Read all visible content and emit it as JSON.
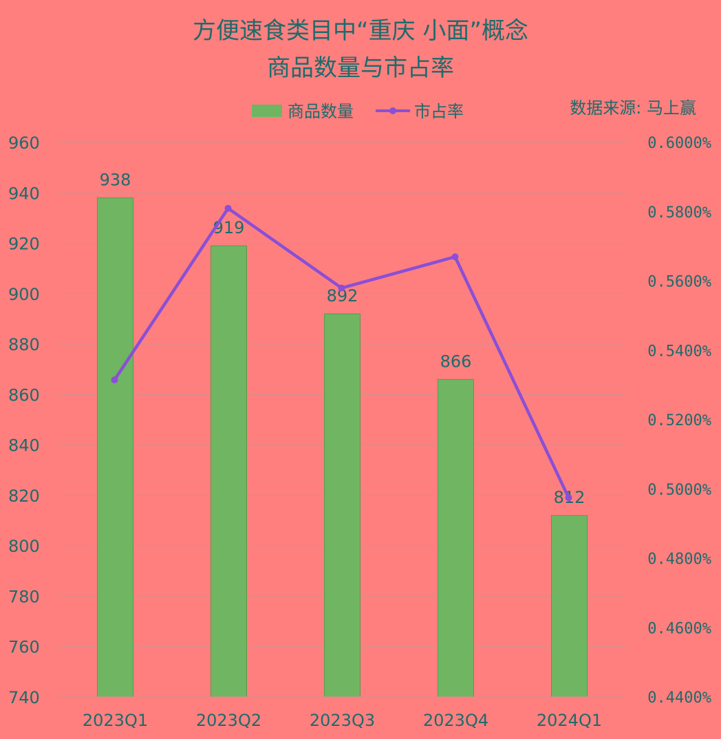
{
  "chart_data": {
    "type": "bar",
    "title_line1": "方便速食类目中“重庆 小面”概念",
    "title_line2": "商品数量与市占率",
    "source": "数据来源: 马上赢",
    "categories": [
      "2023Q1",
      "2023Q2",
      "2023Q3",
      "2023Q4",
      "2024Q1"
    ],
    "series": [
      {
        "name": "商品数量",
        "type": "bar",
        "axis": "left",
        "color": "#70b562",
        "values": [
          938,
          919,
          892,
          866,
          812
        ],
        "labels": [
          "938",
          "919",
          "892",
          "866",
          "812"
        ]
      },
      {
        "name": "市占率",
        "type": "line",
        "axis": "right",
        "color": "#8a4fd6",
        "values": [
          0.5315,
          0.581,
          0.558,
          0.567,
          0.4975
        ]
      }
    ],
    "y_left": {
      "min": 740,
      "max": 960,
      "step": 20,
      "ticks": [
        "740",
        "760",
        "780",
        "800",
        "820",
        "840",
        "860",
        "880",
        "900",
        "920",
        "940",
        "960"
      ]
    },
    "y_right": {
      "min": 0.44,
      "max": 0.6,
      "step": 0.02,
      "unit": "%",
      "ticks": [
        "0.4400%",
        "0.4600%",
        "0.4800%",
        "0.5000%",
        "0.5200%",
        "0.5400%",
        "0.5600%",
        "0.5800%",
        "0.6000%"
      ]
    },
    "grid": true,
    "legend_position": "top-center"
  }
}
